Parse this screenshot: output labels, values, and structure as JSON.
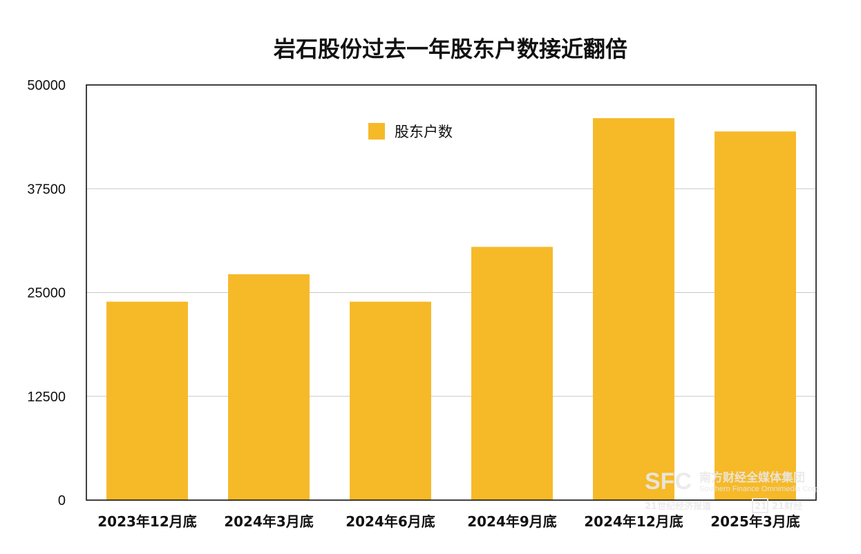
{
  "chart_data": {
    "type": "bar",
    "title": "岩石股份过去一年股东户数接近翻倍",
    "categories": [
      "2023年12月底",
      "2024年3月底",
      "2024年6月底",
      "2024年9月底",
      "2024年12月底",
      "2025年3月底"
    ],
    "series": [
      {
        "name": "股东户数",
        "values": [
          23900,
          27200,
          23900,
          30500,
          46000,
          44400
        ],
        "color": "#f6b928"
      }
    ],
    "ylim": [
      0,
      50000
    ],
    "yticks": [
      "0",
      "12500",
      "25000",
      "37500",
      "50000"
    ],
    "ytick_values": [
      0,
      12500,
      25000,
      37500,
      50000
    ],
    "grid": true,
    "legend_position": "top-center",
    "xlabel": "",
    "ylabel": ""
  },
  "watermark": {
    "logo": "SFC",
    "name_cn": "南方财经全媒体集团",
    "name_en": "Southern Finance Omnimedia Corp",
    "sub": "21世纪经济报道",
    "sub_logo": "21",
    "sub2": "21财经"
  }
}
